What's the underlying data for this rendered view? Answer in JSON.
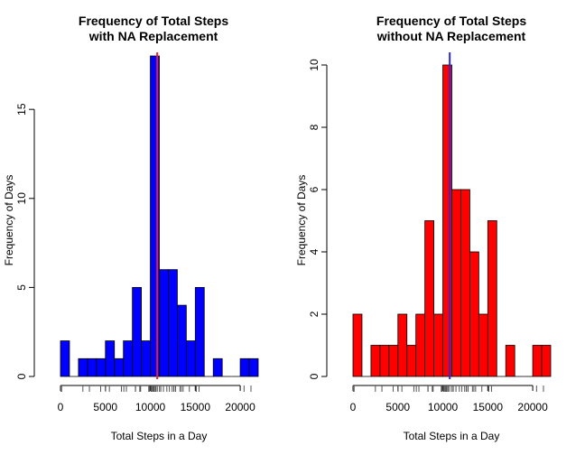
{
  "chart_data": [
    {
      "type": "bar",
      "title_line1": "Frequency of Total Steps",
      "title_line2": "with NA Replacement",
      "xlabel": "Total Steps in a Day",
      "ylabel": "Frequency of Days",
      "bar_color": "#0000ff",
      "vline_color": "#e8212a",
      "vline_value": 10766,
      "bin_width": 1000,
      "bin_start": 0,
      "xlim": [
        0,
        22000
      ],
      "ylim": [
        0,
        18
      ],
      "xticks": [
        0,
        5000,
        10000,
        15000,
        20000
      ],
      "yticks": [
        0,
        5,
        10,
        15
      ],
      "values": [
        2,
        0,
        1,
        1,
        1,
        2,
        1,
        2,
        5,
        2,
        18,
        6,
        6,
        4,
        2,
        5,
        0,
        1,
        0,
        0,
        1,
        1
      ],
      "rug": [
        41,
        126,
        2492,
        3219,
        4472,
        5018,
        5441,
        6778,
        7047,
        7336,
        8334,
        8355,
        8821,
        8841,
        8918,
        9819,
        9900,
        10056,
        10119,
        10139,
        10183,
        10304,
        10395,
        10439,
        10571,
        10600,
        10765,
        10766,
        11015,
        11162,
        11458,
        11834,
        12116,
        12426,
        12608,
        12787,
        12811,
        13294,
        13452,
        13646,
        14339,
        15084,
        15098,
        15110,
        15414,
        20427,
        21194
      ]
    },
    {
      "type": "bar",
      "title_line1": "Frequency of Total Steps",
      "title_line2": "without NA Replacement",
      "xlabel": "Total Steps in a Day",
      "ylabel": "Frequency of Days",
      "bar_color": "#ff0000",
      "vline_color": "#2a2ad6",
      "vline_value": 10766,
      "bin_width": 1000,
      "bin_start": 0,
      "xlim": [
        0,
        22000
      ],
      "ylim": [
        0,
        10
      ],
      "xticks": [
        0,
        5000,
        10000,
        15000,
        20000
      ],
      "yticks": [
        0,
        2,
        4,
        6,
        8,
        10
      ],
      "values": [
        2,
        0,
        1,
        1,
        1,
        2,
        1,
        2,
        5,
        2,
        10,
        6,
        6,
        4,
        2,
        5,
        0,
        1,
        0,
        0,
        1,
        1
      ],
      "rug": [
        41,
        126,
        2492,
        3219,
        4472,
        5018,
        5441,
        6778,
        7047,
        7336,
        8334,
        8355,
        8821,
        8841,
        8918,
        9819,
        9900,
        10056,
        10119,
        10139,
        10183,
        10304,
        10395,
        10439,
        10571,
        10600,
        10765,
        11015,
        11162,
        11458,
        11834,
        12116,
        12426,
        12608,
        12787,
        12811,
        13294,
        13452,
        13646,
        14339,
        15084,
        15098,
        15110,
        15414,
        20427,
        21194
      ]
    }
  ]
}
